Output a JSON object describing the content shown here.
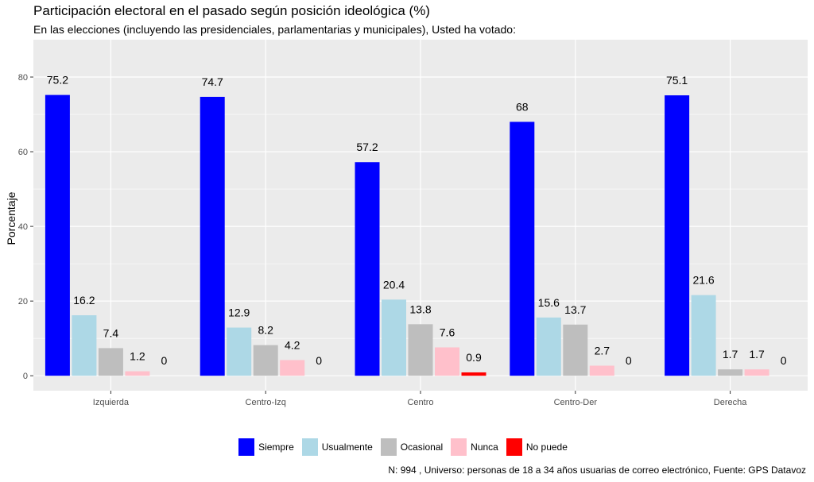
{
  "chart_data": {
    "type": "bar",
    "title": "Participación electoral en el pasado según posición ideológica (%)",
    "subtitle": "En las elecciones (incluyendo las presidenciales, parlamentarias y municipales), Usted ha votado:",
    "xlabel": "",
    "ylabel": "Porcentaje",
    "caption": "N: 994 , Universo: personas de 18 a 34 años usuarias de correo electrónico, Fuente: GPS Datavoz",
    "categories": [
      "Izquierda",
      "Centro-Izq",
      "Centro",
      "Centro-Der",
      "Derecha"
    ],
    "series": [
      {
        "name": "Siempre",
        "color": "#0000FF",
        "values": [
          75.2,
          74.7,
          57.2,
          68,
          75.1
        ],
        "labels": [
          "75.2",
          "74.7",
          "57.2",
          "68",
          "75.1"
        ]
      },
      {
        "name": "Usualmente",
        "color": "#ADD8E6",
        "values": [
          16.2,
          12.9,
          20.4,
          15.6,
          21.6
        ],
        "labels": [
          "16.2",
          "12.9",
          "20.4",
          "15.6",
          "21.6"
        ]
      },
      {
        "name": "Ocasional",
        "color": "#BEBEBE",
        "values": [
          7.4,
          8.2,
          13.8,
          13.7,
          1.7
        ],
        "labels": [
          "7.4",
          "8.2",
          "13.8",
          "13.7",
          "1.7"
        ]
      },
      {
        "name": "Nunca",
        "color": "#FFC0CB",
        "values": [
          1.2,
          4.2,
          7.6,
          2.7,
          1.7
        ],
        "labels": [
          "1.2",
          "4.2",
          "7.6",
          "2.7",
          "1.7"
        ]
      },
      {
        "name": "No puede",
        "color": "#FF0000",
        "values": [
          0,
          0,
          0.9,
          0,
          0
        ],
        "labels": [
          "0",
          "0",
          "0.9",
          "0",
          "0"
        ]
      }
    ],
    "ylim": [
      -4,
      90
    ],
    "yticks": [
      0,
      20,
      40,
      60,
      80
    ],
    "grid": true,
    "panel_background": "#EBEBEB",
    "legend_position": "bottom"
  }
}
